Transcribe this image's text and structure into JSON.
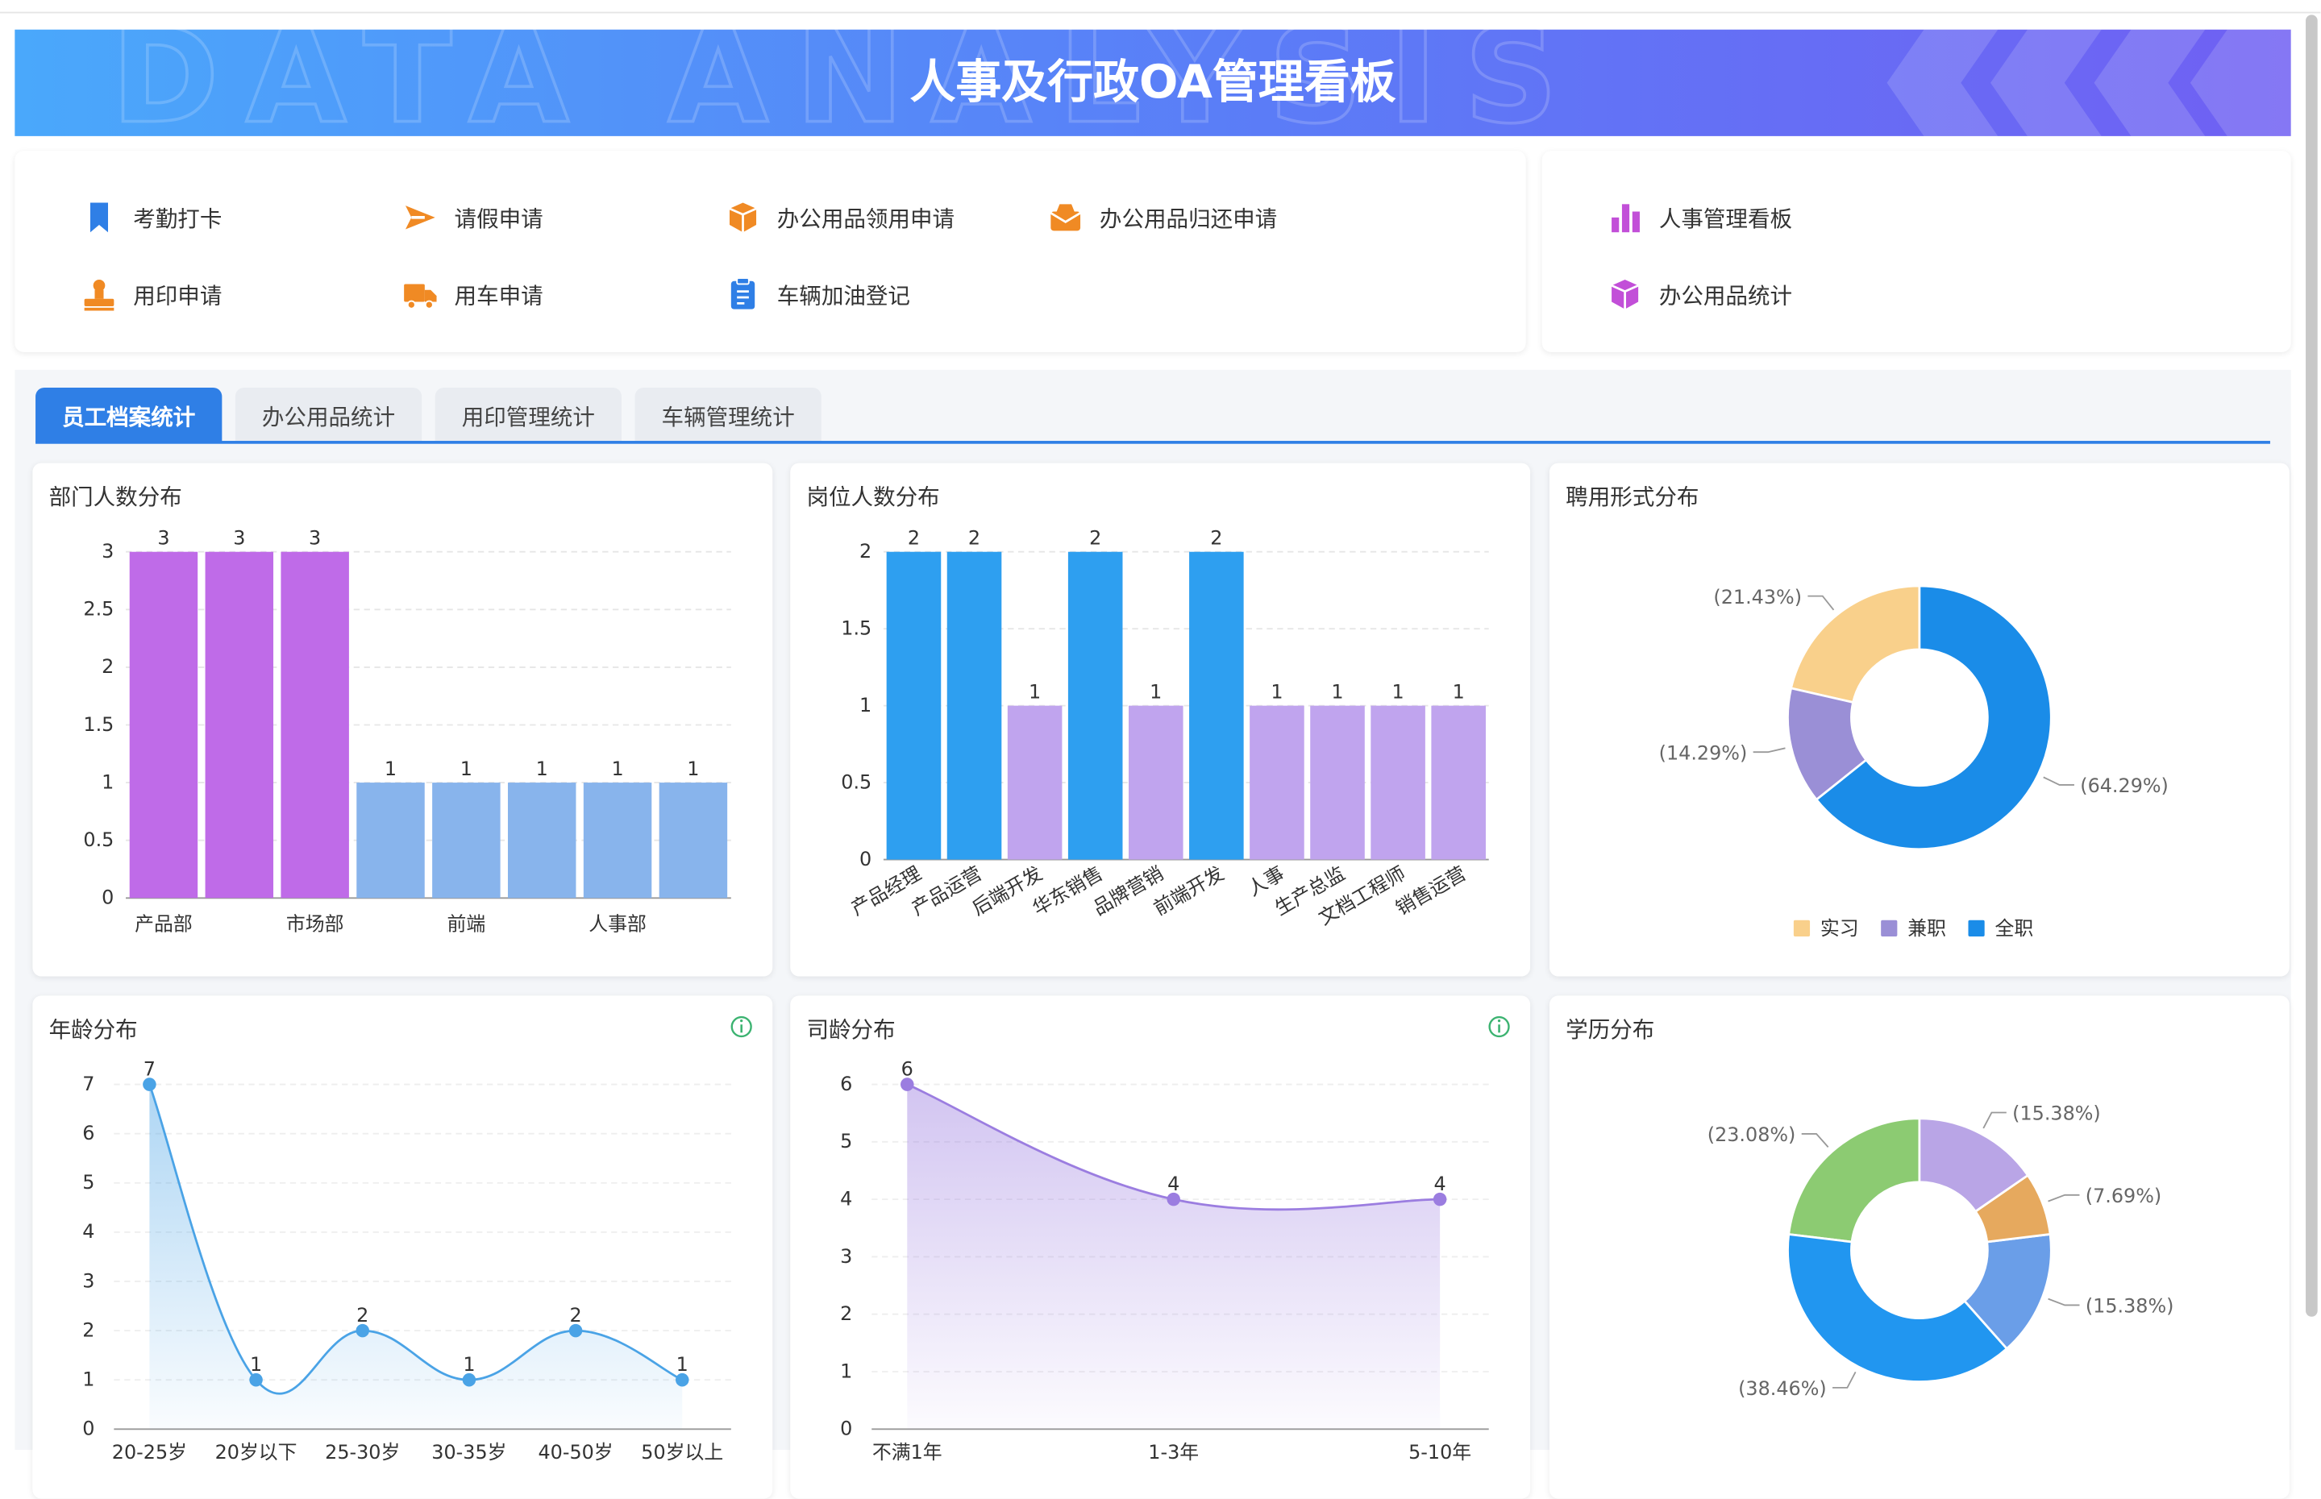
{
  "header": {
    "title": "人事及行政OA管理看板",
    "watermark": "DATA ANALYSIS"
  },
  "menu": {
    "left": [
      "考勤打卡",
      "请假申请",
      "办公用品领用申请",
      "办公用品归还申请",
      "用印申请",
      "用车申请",
      "车辆加油登记"
    ],
    "right": [
      "人事管理看板",
      "办公用品统计"
    ]
  },
  "tabs": [
    "员工档案统计",
    "办公用品统计",
    "用印管理统计",
    "车辆管理统计"
  ],
  "chart_data": [
    {
      "type": "bar",
      "title": "部门人数分布",
      "categories": [
        "产品部",
        null,
        "市场部",
        null,
        "前端",
        null,
        "人事部",
        null
      ],
      "values": [
        3,
        3,
        3,
        1,
        1,
        1,
        1,
        1
      ],
      "colors": [
        "#bf6be8",
        "#bf6be8",
        "#bf6be8",
        "#88b4ec",
        "#88b4ec",
        "#88b4ec",
        "#88b4ec",
        "#88b4ec"
      ],
      "ylim": [
        0,
        3
      ],
      "yticks": [
        0,
        0.5,
        1,
        1.5,
        2,
        2.5,
        3
      ],
      "grid": true
    },
    {
      "type": "bar",
      "title": "岗位人数分布",
      "categories": [
        "产品经理",
        "产品运营",
        "后端开发",
        "华东销售",
        "品牌营销",
        "前端开发",
        "人事",
        "生产总监",
        "文档工程师",
        "销售运营"
      ],
      "values": [
        2,
        2,
        1,
        2,
        1,
        2,
        1,
        1,
        1,
        1
      ],
      "colors": [
        "#2e9ff0",
        "#2e9ff0",
        "#c0a4ee",
        "#2e9ff0",
        "#c0a4ee",
        "#2e9ff0",
        "#c0a4ee",
        "#c0a4ee",
        "#c0a4ee",
        "#c0a4ee"
      ],
      "ylim": [
        0,
        2
      ],
      "yticks": [
        0,
        0.5,
        1,
        1.5,
        2
      ],
      "grid": true
    },
    {
      "type": "donut",
      "title": "聘用形式分布",
      "categories": [
        "实习",
        "兼职",
        "全职"
      ],
      "values": [
        21.43,
        14.29,
        64.29
      ],
      "value_labels": [
        "(21.43%)",
        "(14.29%)",
        "(64.29%)"
      ],
      "colors": [
        "#f9d08b",
        "#9a8fd6",
        "#1a8ce8"
      ],
      "legend": "bottom"
    },
    {
      "type": "area",
      "title": "年龄分布",
      "categories": [
        "20-25岁",
        "20岁以下",
        "25-30岁",
        "30-35岁",
        "40-50岁",
        "50岁以上"
      ],
      "values": [
        7,
        1,
        2,
        1,
        2,
        1
      ],
      "color": "#4aa3e6",
      "ylim": [
        0,
        7
      ],
      "yticks": [
        0,
        1,
        2,
        3,
        4,
        5,
        6,
        7
      ],
      "grid": true
    },
    {
      "type": "area",
      "title": "司龄分布",
      "categories": [
        "不满1年",
        "1-3年",
        "5-10年"
      ],
      "values": [
        6,
        4,
        4
      ],
      "color": "#9b7de0",
      "ylim": [
        0,
        6
      ],
      "yticks": [
        0,
        1,
        2,
        3,
        4,
        5,
        6
      ],
      "grid": true
    },
    {
      "type": "donut",
      "title": "学历分布",
      "values": [
        23.08,
        38.46,
        15.38,
        7.69,
        15.38
      ],
      "value_labels": [
        "(23.08%)",
        "(38.46%)",
        "(15.38%)",
        "(7.69%)",
        "(15.38%)"
      ],
      "colors": [
        "#8ccb72",
        "#2196f0",
        "#6a9ee8",
        "#e6a95e",
        "#b9a5e6"
      ]
    }
  ]
}
